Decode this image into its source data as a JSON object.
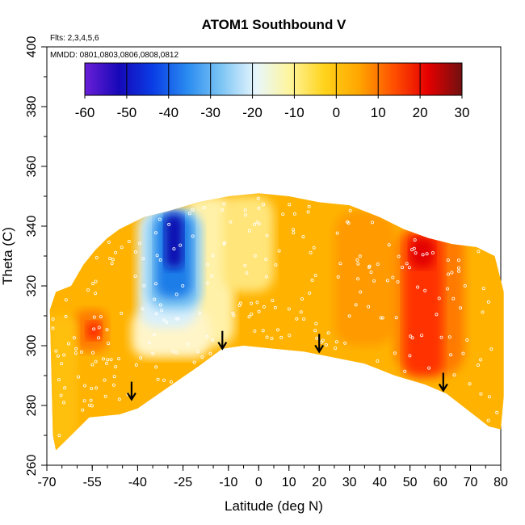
{
  "chart_data": {
    "type": "heatmap",
    "title": "ATOM1 Southbound V",
    "annotations": [
      "Flts: 2,3,4,5,6",
      "MMDD: 0801,0803,0806,0808,0812"
    ],
    "xlabel": "Latitude (deg N)",
    "ylabel": "Theta (C)",
    "xlim": [
      -70,
      80
    ],
    "ylim": [
      260,
      400
    ],
    "x_tick_labels": [
      -70,
      -55,
      -40,
      -25,
      -10,
      0,
      10,
      20,
      30,
      40,
      50,
      60,
      70,
      80
    ],
    "y_tick_labels": [
      260,
      280,
      300,
      320,
      340,
      360,
      380,
      400
    ],
    "colorbar": {
      "range": [
        -60,
        30
      ],
      "tick_labels": [
        -60,
        -50,
        -40,
        -30,
        -20,
        -10,
        0,
        10,
        20,
        30
      ],
      "colors": [
        "#6a1fd6",
        "#1608b8",
        "#0a3ee6",
        "#2a8cf0",
        "#7fc6f5",
        "#e8f6fc",
        "#fff59a",
        "#ffd21a",
        "#ffa600",
        "#ff5000",
        "#e60000",
        "#701010"
      ]
    },
    "field_regions": [
      {
        "name": "negative-v-core",
        "lat": [
          -33,
          -22
        ],
        "theta": [
          318,
          345
        ],
        "v": -45
      },
      {
        "name": "negative-v-flank",
        "lat": [
          -37,
          -18
        ],
        "theta": [
          310,
          345
        ],
        "v": -25
      },
      {
        "name": "positive-v-jet",
        "lat": [
          47,
          62
        ],
        "theta": [
          290,
          338
        ],
        "v": 18
      },
      {
        "name": "south-positive-patch",
        "lat": [
          -58,
          -52
        ],
        "theta": [
          300,
          310
        ],
        "v": 15
      }
    ],
    "arrows_lat": [
      -42,
      -12,
      20,
      61
    ],
    "arrows_theta": [
      282,
      299,
      298,
      285
    ]
  }
}
